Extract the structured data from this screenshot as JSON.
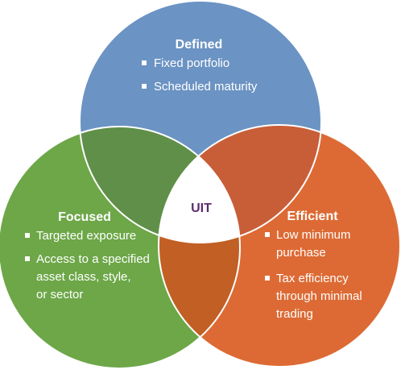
{
  "center": {
    "label": "UIT",
    "color": "#5b2d6e"
  },
  "circles": {
    "defined": {
      "title": "Defined",
      "color": "#6b93c3",
      "bullets": [
        [
          "Fixed portfolio"
        ],
        [
          "Scheduled maturity"
        ]
      ]
    },
    "focused": {
      "title": "Focused",
      "color": "#6da748",
      "bullets": [
        [
          "Targeted exposure"
        ],
        [
          "Access to a specified",
          "asset class, style,",
          "or sector"
        ]
      ]
    },
    "efficient": {
      "title": "Efficient",
      "color": "#dd6a34",
      "bullets": [
        [
          "Low minimum",
          "purchase"
        ],
        [
          "Tax efficiency",
          "through minimal",
          "trading"
        ]
      ]
    }
  },
  "overlap_colors": {
    "defined_focused": "#5f8f48",
    "defined_efficient": "#c85e38",
    "focused_efficient": "#c15f24"
  }
}
